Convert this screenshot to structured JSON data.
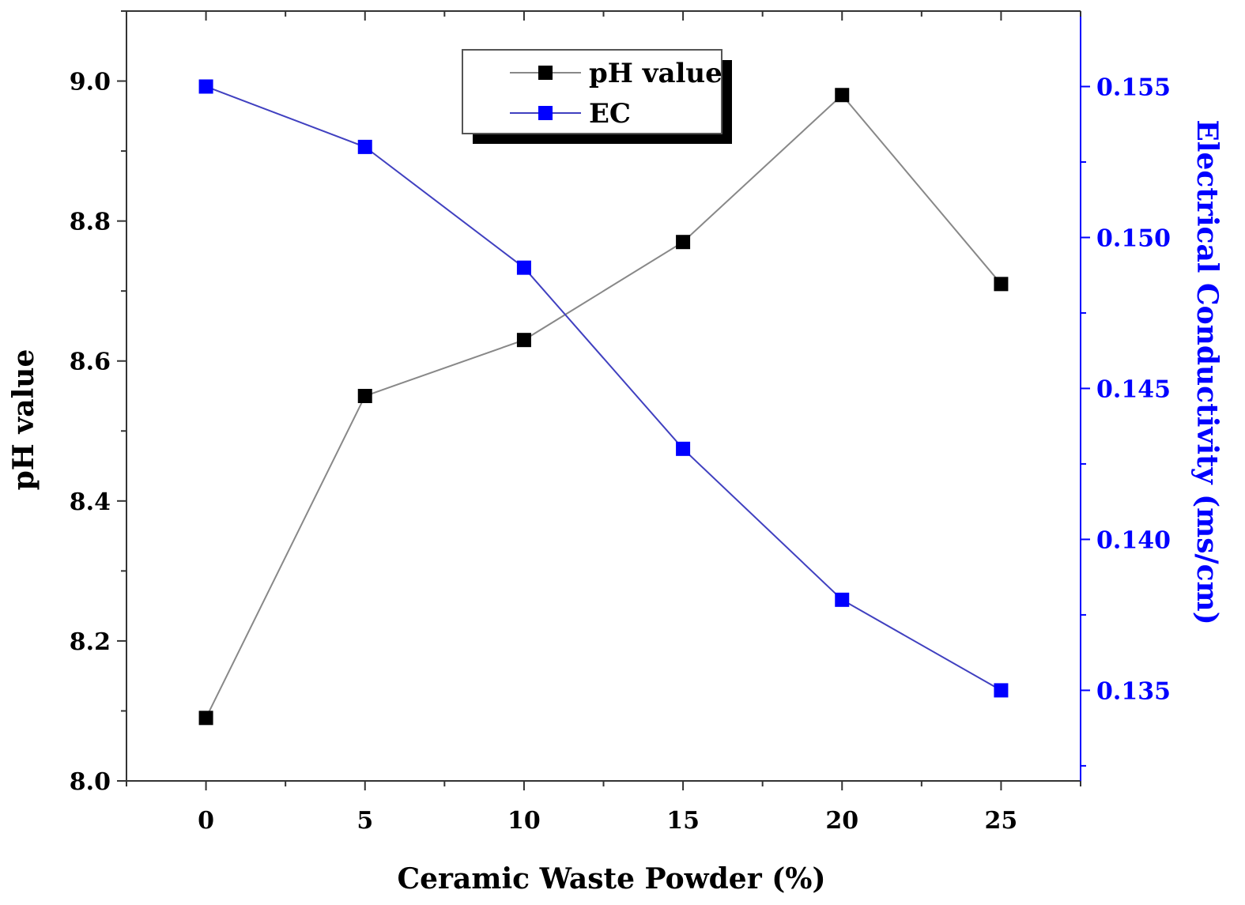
{
  "chart_data": {
    "type": "line",
    "x": [
      0,
      5,
      10,
      15,
      20,
      25
    ],
    "xlim": [
      -2.5,
      27.5
    ],
    "xticks": [
      0,
      5,
      10,
      15,
      20,
      25
    ],
    "xtick_labels": [
      "0",
      "5",
      "10",
      "15",
      "20",
      "25"
    ],
    "xlabel": "Ceramic Waste Powder (%)",
    "ylabel_left": "pH value",
    "ylabel_right": "Electrical Conductivity (ms/cm)",
    "ylim_left": [
      8.0,
      9.1
    ],
    "yticks_left": [
      8.0,
      8.2,
      8.4,
      8.6,
      8.8,
      9.0
    ],
    "ytick_labels_left": [
      "8.0",
      "8.2",
      "8.4",
      "8.6",
      "8.8",
      "9.0"
    ],
    "ylim_right": [
      0.132,
      0.1575
    ],
    "yticks_right": [
      0.135,
      0.14,
      0.145,
      0.15,
      0.155
    ],
    "ytick_labels_right": [
      "0.135",
      "0.140",
      "0.145",
      "0.150",
      "0.155"
    ],
    "legend_position": "top-center",
    "series": [
      {
        "name": "pH value",
        "axis": "left",
        "color": "#000000",
        "line_color": "#888888",
        "values": [
          8.09,
          8.55,
          8.63,
          8.77,
          8.98,
          8.71
        ]
      },
      {
        "name": "EC",
        "axis": "right",
        "color": "#0000ff",
        "line_color": "#4040c0",
        "values": [
          0.155,
          0.153,
          0.149,
          0.143,
          0.138,
          0.135
        ]
      }
    ],
    "right_axis_color": "#0000ff"
  }
}
